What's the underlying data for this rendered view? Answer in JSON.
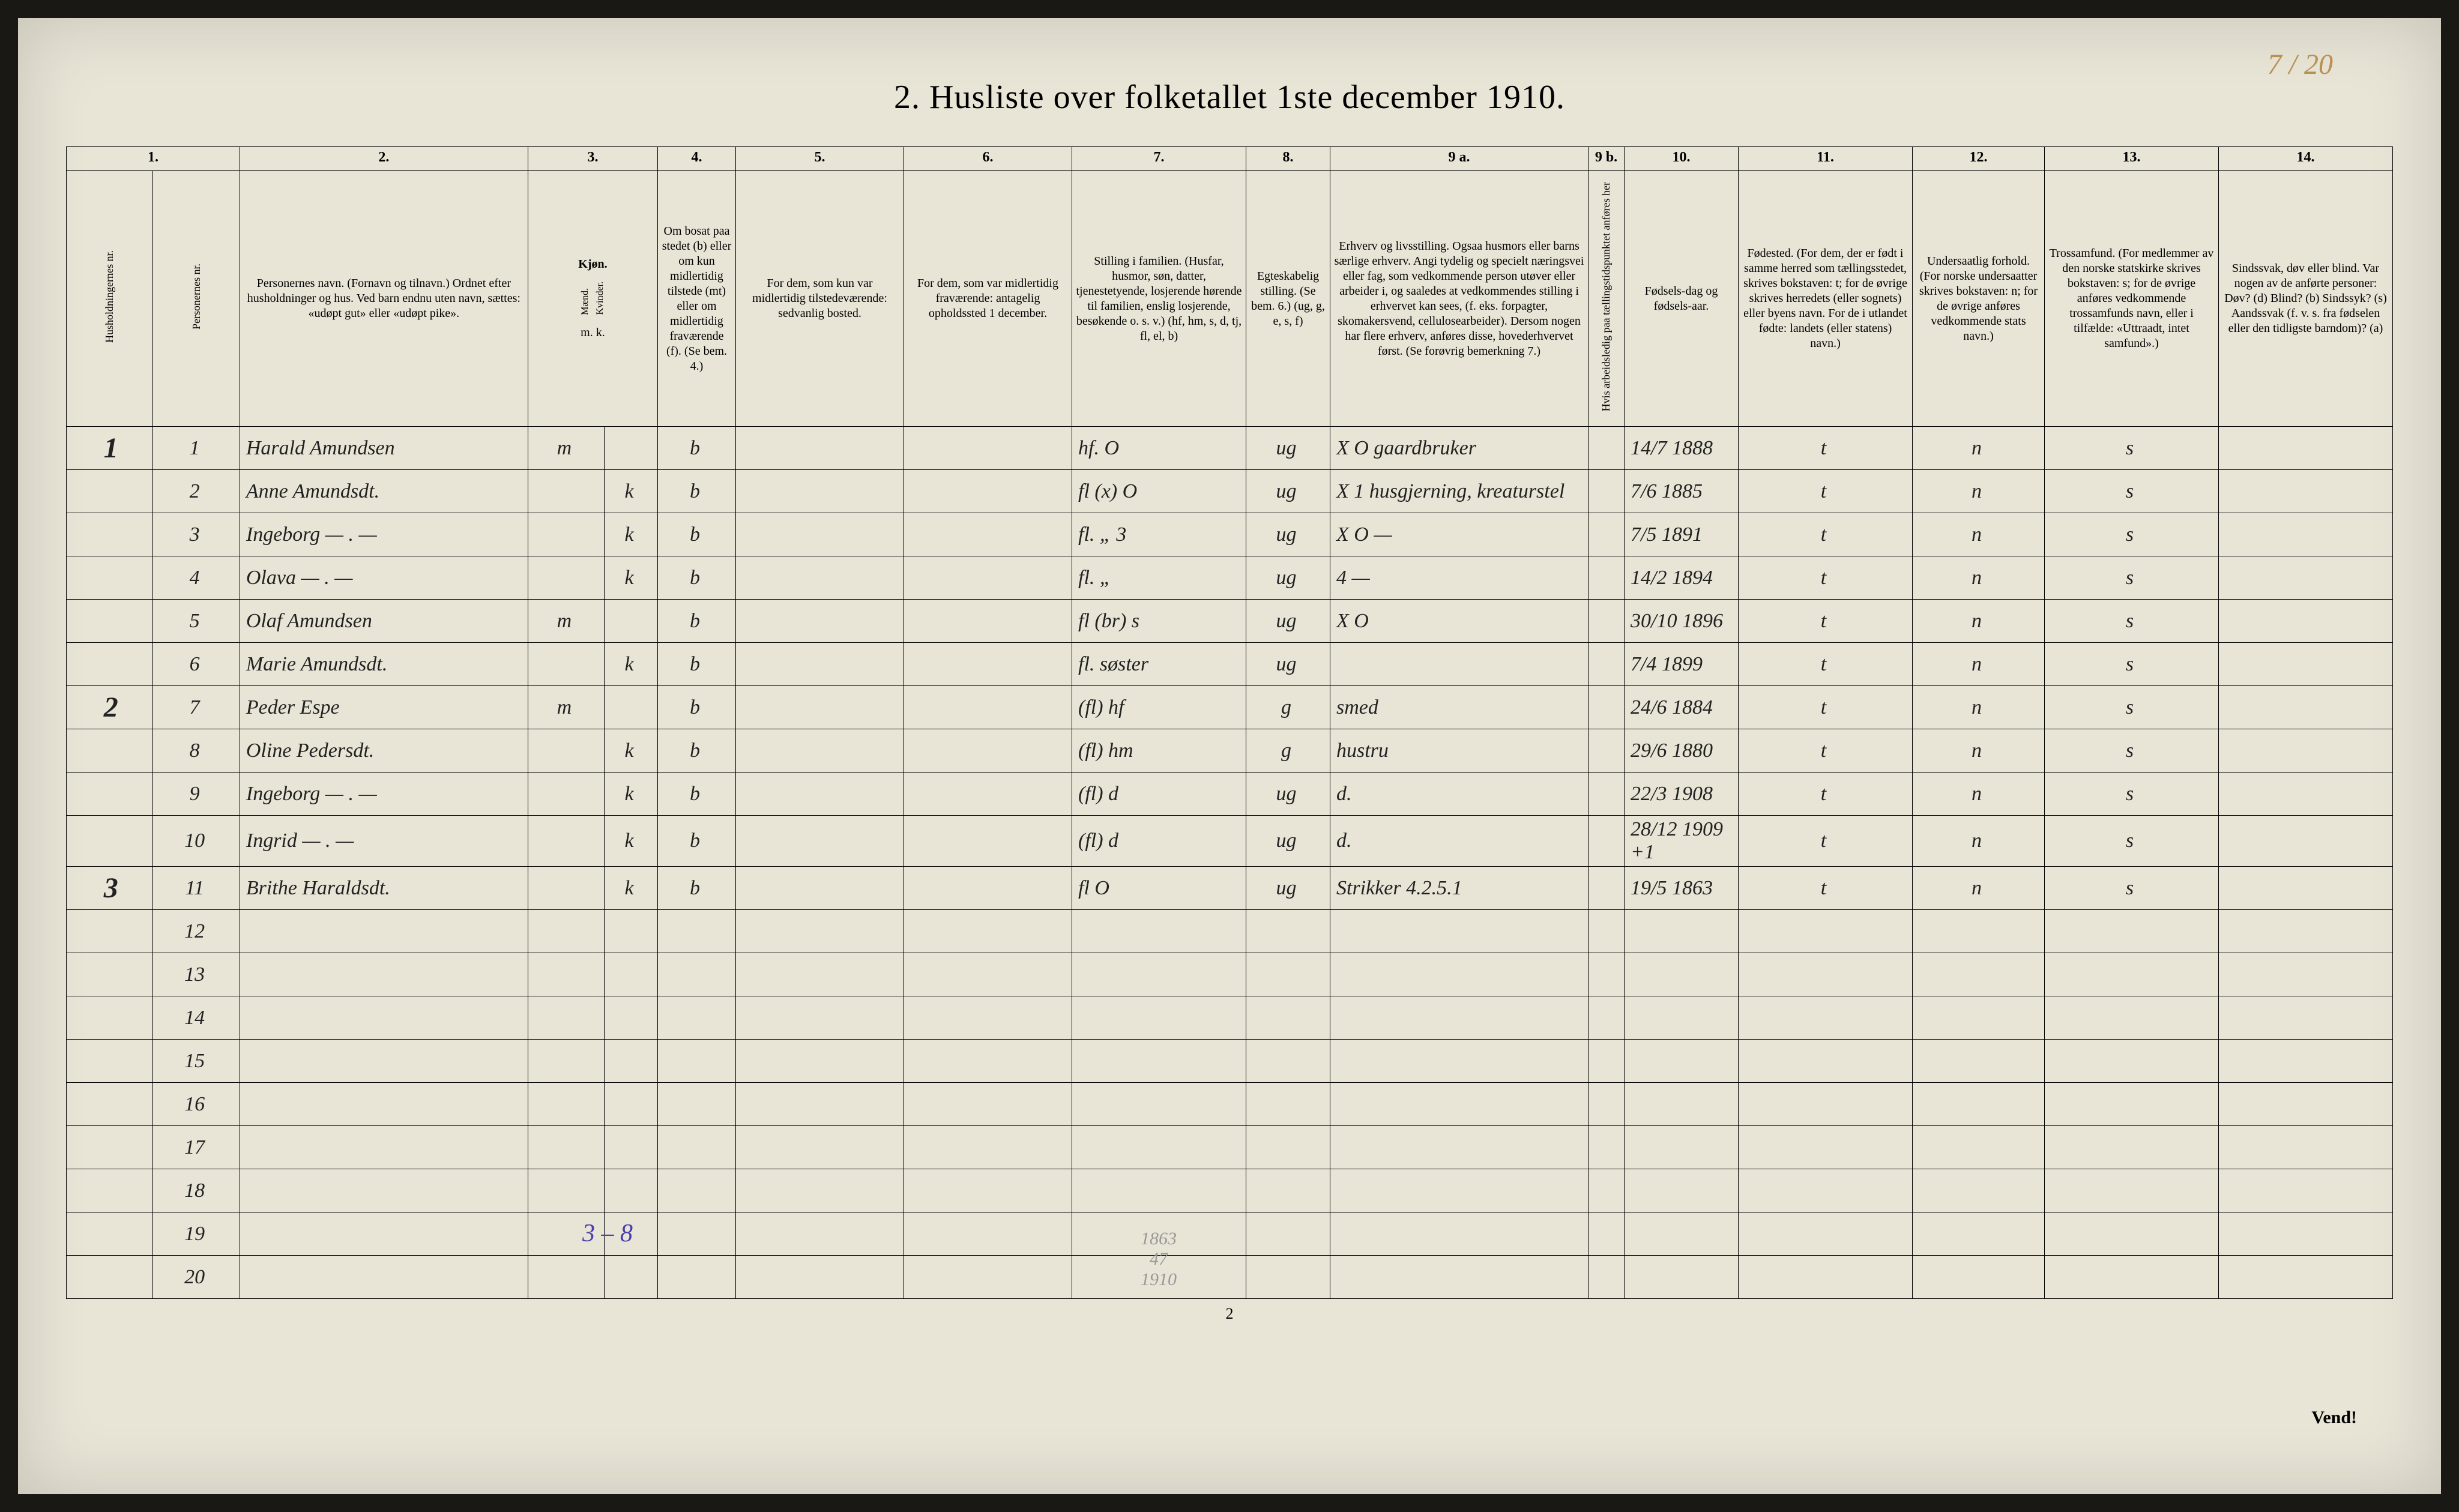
{
  "corner_note": "7 / 20",
  "title": "2.  Husliste over folketallet 1ste december 1910.",
  "footer_page": "2",
  "footer_turn": "Vend!",
  "annot_blue": "3 – 8",
  "annot_pencil": "1863\n47\n1910",
  "colnums": [
    "1.",
    "",
    "2.",
    "3.",
    "4.",
    "5.",
    "6.",
    "7.",
    "8.",
    "9 a.",
    "9 b.",
    "10.",
    "11.",
    "12.",
    "13.",
    "14."
  ],
  "headers": {
    "c1a": "Husholdningernes nr.",
    "c1b": "Personernes nr.",
    "c2": "Personernes navn.\n(Fornavn og tilnavn.)\nOrdnet efter husholdninger og hus.\nVed barn endnu uten navn, sættes: «udøpt gut» eller «udøpt pike».",
    "c3h": "Kjøn.",
    "c3m": "Mænd.",
    "c3k": "Kvinder.",
    "c3mk": "m.  k.",
    "c4": "Om bosat paa stedet (b) eller om kun midlertidig tilstede (mt) eller om midlertidig fraværende (f). (Se bem. 4.)",
    "c5": "For dem, som kun var midlertidig tilstedeværende:\n\nsedvanlig bosted.",
    "c6": "For dem, som var midlertidig fraværende:\n\nantagelig opholdssted 1 december.",
    "c7": "Stilling i familien.\n(Husfar, husmor, søn, datter, tjenestetyende, losjerende hørende til familien, enslig losjerende, besøkende o. s. v.)\n(hf, hm, s, d, tj, fl, el, b)",
    "c8": "Egteskabelig stilling.\n(Se bem. 6.)\n(ug, g, e, s, f)",
    "c9a": "Erhverv og livsstilling.\nOgsaa husmors eller barns særlige erhverv. Angi tydelig og specielt næringsvei eller fag, som vedkommende person utøver eller arbeider i, og saaledes at vedkommendes stilling i erhvervet kan sees, (f. eks. forpagter, skomakersvend, cellulosearbeider). Dersom nogen har flere erhverv, anføres disse, hovederhvervet først.\n(Se forøvrig bemerkning 7.)",
    "c9b": "Hvis arbeidsledig paa tællingstidspunktet anføres her",
    "c10": "Fødsels-dag og fødsels-aar.",
    "c11": "Fødested.\n(For dem, der er født i samme herred som tællingsstedet, skrives bokstaven: t; for de øvrige skrives herredets (eller sognets) eller byens navn. For de i utlandet fødte: landets (eller statens) navn.)",
    "c12": "Undersaatlig forhold.\n(For norske undersaatter skrives bokstaven: n; for de øvrige anføres vedkommende stats navn.)",
    "c13": "Trossamfund.\n(For medlemmer av den norske statskirke skrives bokstaven: s; for de øvrige anføres vedkommende trossamfunds navn, eller i tilfælde: «Uttraadt, intet samfund».)",
    "c14": "Sindssvak, døv eller blind.\nVar nogen av de anførte personer:\nDøv?     (d)\nBlind?   (b)\nSindssyk? (s)\nAandssvak (f. v. s. fra fødselen eller den tidligste barndom)? (a)"
  },
  "rows": [
    {
      "hh": "1",
      "pn": "1",
      "name": "Harald Amundsen",
      "m": "m",
      "k": "",
      "res": "b",
      "c5": "",
      "c6": "",
      "fam": "hf.     O",
      "egt": "ug",
      "erhv": "X O   gaardbruker",
      "c9b": "",
      "dob": "14/7 1888",
      "c11": "t",
      "c12": "n",
      "c13": "s",
      "c14": ""
    },
    {
      "hh": "",
      "pn": "2",
      "name": "Anne Amundsdt.",
      "m": "",
      "k": "k",
      "res": "b",
      "c5": "",
      "c6": "",
      "fam": "fl  (x) O",
      "egt": "ug",
      "erhv": "X 1  husgjerning, kreaturstel",
      "c9b": "",
      "dob": "7/6 1885",
      "c11": "t",
      "c12": "n",
      "c13": "s",
      "c14": ""
    },
    {
      "hh": "",
      "pn": "3",
      "name": "Ingeborg   —  .  —",
      "m": "",
      "k": "k",
      "res": "b",
      "c5": "",
      "c6": "",
      "fam": "fl.   „ 3",
      "egt": "ug",
      "erhv": "X O        —",
      "c9b": "",
      "dob": "7/5 1891",
      "c11": "t",
      "c12": "n",
      "c13": "s",
      "c14": ""
    },
    {
      "hh": "",
      "pn": "4",
      "name": "Olava    —  .  —",
      "m": "",
      "k": "k",
      "res": "b",
      "c5": "",
      "c6": "",
      "fam": "fl.   „",
      "egt": "ug",
      "erhv": "4          —",
      "c9b": "",
      "dob": "14/2 1894",
      "c11": "t",
      "c12": "n",
      "c13": "s",
      "c14": ""
    },
    {
      "hh": "",
      "pn": "5",
      "name": "Olaf Amundsen",
      "m": "m",
      "k": "",
      "res": "b",
      "c5": "",
      "c6": "",
      "fam": "fl  (br) s",
      "egt": "ug",
      "erhv": "X O",
      "c9b": "",
      "dob": "30/10 1896",
      "c11": "t",
      "c12": "n",
      "c13": "s",
      "c14": ""
    },
    {
      "hh": "",
      "pn": "6",
      "name": "Marie Amundsdt.",
      "m": "",
      "k": "k",
      "res": "b",
      "c5": "",
      "c6": "",
      "fam": "fl. søster",
      "egt": "ug",
      "erhv": "",
      "c9b": "",
      "dob": "7/4 1899",
      "c11": "t",
      "c12": "n",
      "c13": "s",
      "c14": ""
    },
    {
      "hh": "2",
      "pn": "7",
      "name": "Peder Espe",
      "m": "m",
      "k": "",
      "res": "b",
      "c5": "",
      "c6": "",
      "fam": "(fl) hf",
      "egt": "g",
      "erhv": "smed",
      "c9b": "",
      "dob": "24/6 1884",
      "c11": "t",
      "c12": "n",
      "c13": "s",
      "c14": ""
    },
    {
      "hh": "",
      "pn": "8",
      "name": "Oline Pedersdt.",
      "m": "",
      "k": "k",
      "res": "b",
      "c5": "",
      "c6": "",
      "fam": "(fl) hm",
      "egt": "g",
      "erhv": "hustru",
      "c9b": "",
      "dob": "29/6 1880",
      "c11": "t",
      "c12": "n",
      "c13": "s",
      "c14": ""
    },
    {
      "hh": "",
      "pn": "9",
      "name": "Ingeborg   —  .  —",
      "m": "",
      "k": "k",
      "res": "b",
      "c5": "",
      "c6": "",
      "fam": "(fl) d",
      "egt": "ug",
      "erhv": "d.",
      "c9b": "",
      "dob": "22/3 1908",
      "c11": "t",
      "c12": "n",
      "c13": "s",
      "c14": ""
    },
    {
      "hh": "",
      "pn": "10",
      "name": "Ingrid    —  .  —",
      "m": "",
      "k": "k",
      "res": "b",
      "c5": "",
      "c6": "",
      "fam": "(fl) d",
      "egt": "ug",
      "erhv": "d.",
      "c9b": "",
      "dob": "28/12 1909 +1",
      "c11": "t",
      "c12": "n",
      "c13": "s",
      "c14": ""
    },
    {
      "hh": "3",
      "pn": "11",
      "name": "Brithe Haraldsdt.",
      "m": "",
      "k": "k",
      "res": "b",
      "c5": "",
      "c6": "",
      "fam": "fl   O",
      "egt": "ug",
      "erhv": "Strikker  4.2.5.1",
      "c9b": "",
      "dob": "19/5 1863",
      "c11": "t",
      "c12": "n",
      "c13": "s",
      "c14": ""
    },
    {
      "hh": "",
      "pn": "12",
      "name": "",
      "m": "",
      "k": "",
      "res": "",
      "c5": "",
      "c6": "",
      "fam": "",
      "egt": "",
      "erhv": "",
      "c9b": "",
      "dob": "",
      "c11": "",
      "c12": "",
      "c13": "",
      "c14": ""
    },
    {
      "hh": "",
      "pn": "13",
      "name": "",
      "m": "",
      "k": "",
      "res": "",
      "c5": "",
      "c6": "",
      "fam": "",
      "egt": "",
      "erhv": "",
      "c9b": "",
      "dob": "",
      "c11": "",
      "c12": "",
      "c13": "",
      "c14": ""
    },
    {
      "hh": "",
      "pn": "14",
      "name": "",
      "m": "",
      "k": "",
      "res": "",
      "c5": "",
      "c6": "",
      "fam": "",
      "egt": "",
      "erhv": "",
      "c9b": "",
      "dob": "",
      "c11": "",
      "c12": "",
      "c13": "",
      "c14": ""
    },
    {
      "hh": "",
      "pn": "15",
      "name": "",
      "m": "",
      "k": "",
      "res": "",
      "c5": "",
      "c6": "",
      "fam": "",
      "egt": "",
      "erhv": "",
      "c9b": "",
      "dob": "",
      "c11": "",
      "c12": "",
      "c13": "",
      "c14": ""
    },
    {
      "hh": "",
      "pn": "16",
      "name": "",
      "m": "",
      "k": "",
      "res": "",
      "c5": "",
      "c6": "",
      "fam": "",
      "egt": "",
      "erhv": "",
      "c9b": "",
      "dob": "",
      "c11": "",
      "c12": "",
      "c13": "",
      "c14": ""
    },
    {
      "hh": "",
      "pn": "17",
      "name": "",
      "m": "",
      "k": "",
      "res": "",
      "c5": "",
      "c6": "",
      "fam": "",
      "egt": "",
      "erhv": "",
      "c9b": "",
      "dob": "",
      "c11": "",
      "c12": "",
      "c13": "",
      "c14": ""
    },
    {
      "hh": "",
      "pn": "18",
      "name": "",
      "m": "",
      "k": "",
      "res": "",
      "c5": "",
      "c6": "",
      "fam": "",
      "egt": "",
      "erhv": "",
      "c9b": "",
      "dob": "",
      "c11": "",
      "c12": "",
      "c13": "",
      "c14": ""
    },
    {
      "hh": "",
      "pn": "19",
      "name": "",
      "m": "",
      "k": "",
      "res": "",
      "c5": "",
      "c6": "",
      "fam": "",
      "egt": "",
      "erhv": "",
      "c9b": "",
      "dob": "",
      "c11": "",
      "c12": "",
      "c13": "",
      "c14": ""
    },
    {
      "hh": "",
      "pn": "20",
      "name": "",
      "m": "",
      "k": "",
      "res": "",
      "c5": "",
      "c6": "",
      "fam": "",
      "egt": "",
      "erhv": "",
      "c9b": "",
      "dob": "",
      "c11": "",
      "c12": "",
      "c13": "",
      "c14": ""
    }
  ]
}
